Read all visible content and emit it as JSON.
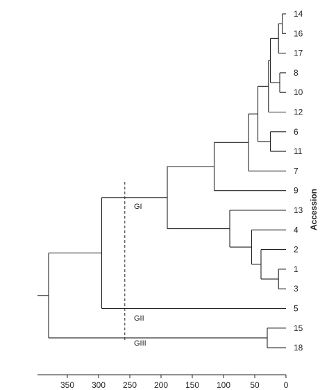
{
  "y_axis_title": "Accession",
  "leaves": [
    "14",
    "16",
    "17",
    "8",
    "10",
    "12",
    "6",
    "11",
    "7",
    "9",
    "13",
    "4",
    "2",
    "1",
    "3",
    "5",
    "15",
    "18"
  ],
  "axis": {
    "ticks": [
      350,
      300,
      250,
      200,
      150,
      100,
      50,
      0
    ],
    "tick_labels": [
      "350",
      "300",
      "250",
      "200",
      "150",
      "100",
      "50",
      "0"
    ],
    "range": [
      390,
      0
    ]
  },
  "cut_height": 258,
  "groups": [
    {
      "label": "GI"
    },
    {
      "label": "GII"
    },
    {
      "label": "GIII"
    }
  ],
  "tree": {
    "h": 380,
    "children": [
      {
        "h": 295,
        "children": [
          {
            "h": 190,
            "children": [
              {
                "h": 115,
                "children": [
                  {
                    "h": 60,
                    "children": [
                      {
                        "h": 45,
                        "children": [
                          {
                            "h": 28,
                            "children": [
                              {
                                "h": 25,
                                "children": [
                                  {
                                    "h": 12,
                                    "children": [
                                      {
                                        "h": 6,
                                        "children": [
                                          {
                                            "leaf": "14"
                                          },
                                          {
                                            "leaf": "16"
                                          }
                                        ]
                                      },
                                      {
                                        "leaf": "17"
                                      }
                                    ]
                                  },
                                  {
                                    "h": 10,
                                    "children": [
                                      {
                                        "leaf": "8"
                                      },
                                      {
                                        "leaf": "10"
                                      }
                                    ]
                                  }
                                ]
                              },
                              {
                                "leaf": "12"
                              }
                            ]
                          },
                          {
                            "h": 25,
                            "children": [
                              {
                                "leaf": "6"
                              },
                              {
                                "leaf": "11"
                              }
                            ]
                          }
                        ]
                      },
                      {
                        "leaf": "7"
                      }
                    ]
                  },
                  {
                    "leaf": "9"
                  }
                ]
              },
              {
                "h": 90,
                "children": [
                  {
                    "leaf": "13"
                  },
                  {
                    "h": 55,
                    "children": [
                      {
                        "leaf": "4"
                      },
                      {
                        "h": 40,
                        "children": [
                          {
                            "leaf": "2"
                          },
                          {
                            "h": 12,
                            "children": [
                              {
                                "leaf": "1"
                              },
                              {
                                "leaf": "3"
                              }
                            ]
                          }
                        ]
                      }
                    ]
                  }
                ]
              }
            ]
          },
          {
            "leaf": "5"
          }
        ]
      },
      {
        "h": 30,
        "children": [
          {
            "leaf": "15"
          },
          {
            "leaf": "18"
          }
        ]
      }
    ]
  }
}
